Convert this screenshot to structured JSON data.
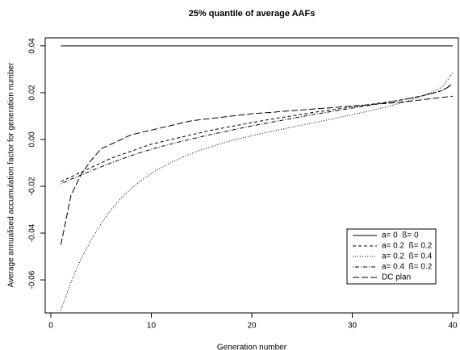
{
  "chart_data": {
    "type": "line",
    "title": "25% quantile of average AAFs",
    "x_label": "Generation number",
    "y_label": "Average annualised accumulation factor for generation number",
    "x": [
      1,
      2,
      3,
      4,
      5,
      6,
      7,
      8,
      9,
      10,
      11,
      12,
      13,
      14,
      15,
      16,
      17,
      18,
      19,
      20,
      21,
      22,
      23,
      24,
      25,
      26,
      27,
      28,
      29,
      30,
      31,
      32,
      33,
      34,
      35,
      36,
      37,
      38,
      39,
      40
    ],
    "series": [
      {
        "name": "a= 0  ß= 0",
        "color": "#000000",
        "dash": "none",
        "values": [
          0.04,
          0.04,
          0.04,
          0.04,
          0.04,
          0.04,
          0.04,
          0.04,
          0.04,
          0.04,
          0.04,
          0.04,
          0.04,
          0.04,
          0.04,
          0.04,
          0.04,
          0.04,
          0.04,
          0.04,
          0.04,
          0.04,
          0.04,
          0.04,
          0.04,
          0.04,
          0.04,
          0.04,
          0.04,
          0.04,
          0.04,
          0.04,
          0.04,
          0.04,
          0.04,
          0.04,
          0.04,
          0.04,
          0.04,
          0.04
        ]
      },
      {
        "name": "a= 0.2  ß= 0.2",
        "color": "#000000",
        "dash": "4,3",
        "values": [
          -0.018,
          -0.016,
          -0.014,
          -0.012,
          -0.01,
          -0.008,
          -0.0065,
          -0.005,
          -0.0035,
          -0.002,
          -0.001,
          0.0,
          0.001,
          0.002,
          0.003,
          0.004,
          0.0048,
          0.0056,
          0.0064,
          0.0072,
          0.008,
          0.0087,
          0.0094,
          0.0101,
          0.0108,
          0.0115,
          0.0121,
          0.0127,
          0.0133,
          0.0139,
          0.0145,
          0.0151,
          0.0157,
          0.0163,
          0.017,
          0.0178,
          0.0187,
          0.0198,
          0.021,
          0.024
        ]
      },
      {
        "name": "a= 0.2  ß= 0.4",
        "color": "#000000",
        "dash": "1,2",
        "values": [
          -0.073,
          -0.061,
          -0.051,
          -0.043,
          -0.036,
          -0.03,
          -0.025,
          -0.021,
          -0.0175,
          -0.0145,
          -0.012,
          -0.0098,
          -0.0078,
          -0.006,
          -0.0044,
          -0.003,
          -0.0017,
          -0.0005,
          0.0006,
          0.0016,
          0.0026,
          0.0035,
          0.0044,
          0.0053,
          0.0062,
          0.007,
          0.0079,
          0.0088,
          0.0097,
          0.0106,
          0.0115,
          0.0125,
          0.0135,
          0.0146,
          0.0158,
          0.0171,
          0.0186,
          0.0204,
          0.0226,
          0.0285
        ]
      },
      {
        "name": "a= 0.4  ß= 0.2",
        "color": "#000000",
        "dash": "1,2,5,2",
        "values": [
          -0.019,
          -0.017,
          -0.0152,
          -0.0134,
          -0.0117,
          -0.01,
          -0.0084,
          -0.0069,
          -0.0055,
          -0.0042,
          -0.003,
          -0.0019,
          -0.0008,
          0.0002,
          0.0012,
          0.0022,
          0.0031,
          0.004,
          0.0049,
          0.0058,
          0.0066,
          0.0074,
          0.0082,
          0.009,
          0.0098,
          0.0106,
          0.0113,
          0.012,
          0.0127,
          0.0134,
          0.0141,
          0.0148,
          0.0155,
          0.0162,
          0.017,
          0.0178,
          0.0187,
          0.0197,
          0.021,
          0.0235
        ]
      },
      {
        "name": "DC plan",
        "color": "#000000",
        "dash": "8,3",
        "values": [
          -0.045,
          -0.024,
          -0.015,
          -0.009,
          -0.004,
          -0.002,
          0.0,
          0.002,
          0.003,
          0.004,
          0.005,
          0.006,
          0.007,
          0.008,
          0.0085,
          0.009,
          0.0095,
          0.01,
          0.0105,
          0.011,
          0.0113,
          0.0116,
          0.012,
          0.0123,
          0.0126,
          0.013,
          0.0133,
          0.0136,
          0.014,
          0.0143,
          0.0146,
          0.015,
          0.0153,
          0.0156,
          0.016,
          0.0165,
          0.017,
          0.0175,
          0.018,
          0.0185
        ]
      }
    ],
    "xlim": [
      -0.56,
      40.56
    ],
    "xticks": [
      0,
      10,
      20,
      30,
      40
    ],
    "ylim": [
      -0.0741,
      0.0434
    ],
    "yticks": [
      -0.06,
      -0.04,
      -0.02,
      {
        "value": 0,
        "label": "0.00"
      },
      0.02,
      0.04
    ],
    "legend": "bottom-right"
  }
}
